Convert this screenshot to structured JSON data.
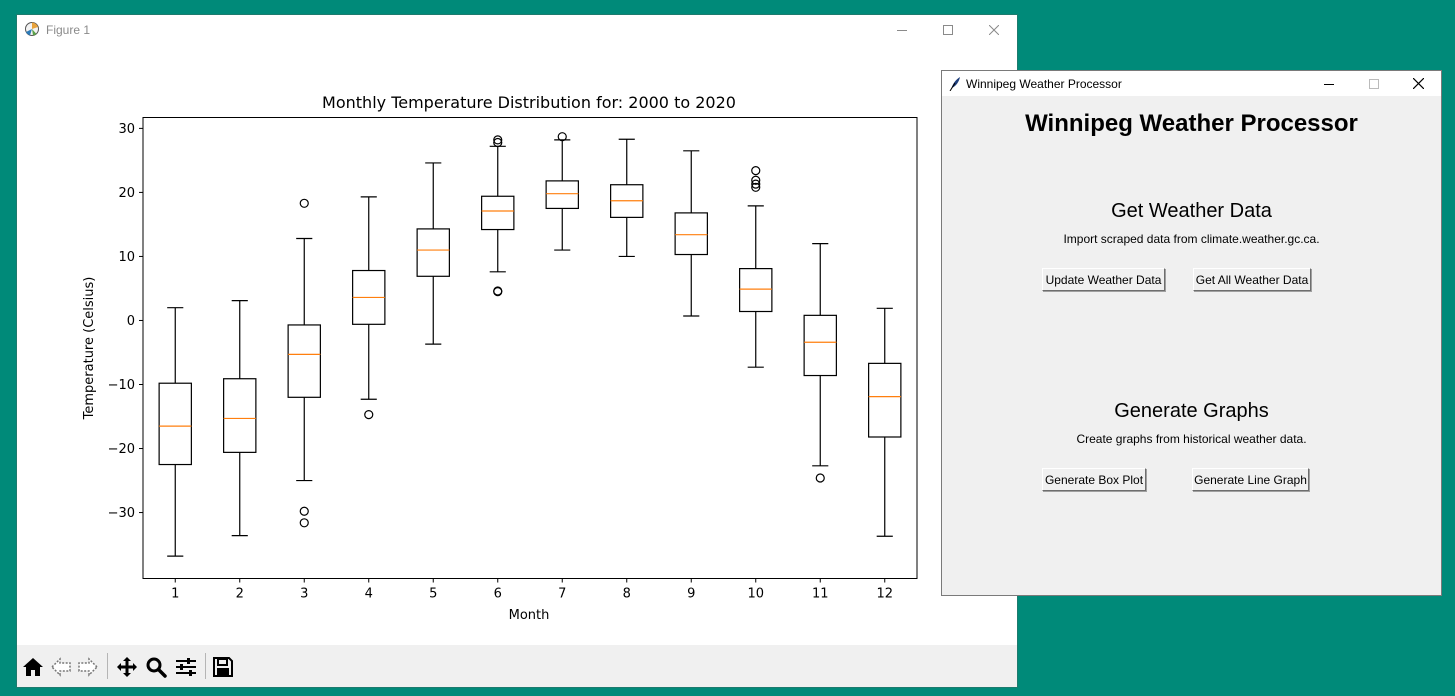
{
  "figure_window": {
    "title": "Figure 1",
    "toolbar": {
      "buttons": [
        "home-icon",
        "back-arrow-icon",
        "forward-arrow-icon",
        "pan-move-icon",
        "zoom-magnifier-icon",
        "configure-subplots-icon",
        "save-floppy-icon"
      ]
    }
  },
  "chart_data": {
    "type": "box",
    "title": "Monthly Temperature Distribution for: 2000 to 2020",
    "xlabel": "Month",
    "ylabel": "Temperature (Celsius)",
    "ylim": [
      -40.3,
      31.7
    ],
    "yticks": [
      -30,
      -20,
      -10,
      0,
      10,
      20,
      30
    ],
    "yticklabels": [
      "−30",
      "−20",
      "−10",
      "0",
      "10",
      "20",
      "30"
    ],
    "categories": [
      "1",
      "2",
      "3",
      "4",
      "5",
      "6",
      "7",
      "8",
      "9",
      "10",
      "11",
      "12"
    ],
    "colors": {
      "median": "#ff7f0e",
      "box": "#000000"
    },
    "boxes": [
      {
        "whislo": -36.8,
        "q1": -22.5,
        "med": -16.5,
        "q3": -9.8,
        "whishi": 2.0,
        "fliers": []
      },
      {
        "whislo": -33.6,
        "q1": -20.6,
        "med": -15.3,
        "q3": -9.1,
        "whishi": 3.1,
        "fliers": []
      },
      {
        "whislo": -25.0,
        "q1": -12.0,
        "med": -5.3,
        "q3": -0.7,
        "whishi": 12.8,
        "fliers": [
          18.3,
          -29.8,
          -31.6
        ]
      },
      {
        "whislo": -12.3,
        "q1": -0.6,
        "med": 3.6,
        "q3": 7.8,
        "whishi": 19.3,
        "fliers": [
          -14.7
        ]
      },
      {
        "whislo": -3.7,
        "q1": 6.9,
        "med": 11.0,
        "q3": 14.3,
        "whishi": 24.6,
        "fliers": []
      },
      {
        "whislo": 7.6,
        "q1": 14.2,
        "med": 17.1,
        "q3": 19.4,
        "whishi": 27.2,
        "fliers": [
          28.2,
          27.8,
          4.6,
          4.5
        ]
      },
      {
        "whislo": 11.0,
        "q1": 17.5,
        "med": 19.8,
        "q3": 21.8,
        "whishi": 28.2,
        "fliers": [
          28.7
        ]
      },
      {
        "whislo": 10.0,
        "q1": 16.1,
        "med": 18.7,
        "q3": 21.2,
        "whishi": 28.3,
        "fliers": []
      },
      {
        "whislo": 0.7,
        "q1": 10.3,
        "med": 13.4,
        "q3": 16.8,
        "whishi": 26.5,
        "fliers": []
      },
      {
        "whislo": -7.3,
        "q1": 1.4,
        "med": 4.9,
        "q3": 8.1,
        "whishi": 17.9,
        "fliers": [
          23.4,
          21.9,
          21.3,
          20.8
        ]
      },
      {
        "whislo": -22.7,
        "q1": -8.6,
        "med": -3.4,
        "q3": 0.8,
        "whishi": 12.0,
        "fliers": [
          -24.6
        ]
      },
      {
        "whislo": -33.7,
        "q1": -18.2,
        "med": -11.9,
        "q3": -6.7,
        "whishi": 1.9,
        "fliers": []
      }
    ]
  },
  "tk_window": {
    "title": "Winnipeg Weather Processor",
    "heading": "Winnipeg Weather Processor",
    "section1": {
      "heading": "Get Weather Data",
      "description": "Import scraped data from climate.weather.gc.ca.",
      "buttons": [
        "Update Weather Data",
        "Get All Weather Data"
      ]
    },
    "section2": {
      "heading": "Generate Graphs",
      "description": "Create graphs from historical weather data.",
      "buttons": [
        "Generate Box Plot",
        "Generate Line Graph"
      ]
    }
  }
}
